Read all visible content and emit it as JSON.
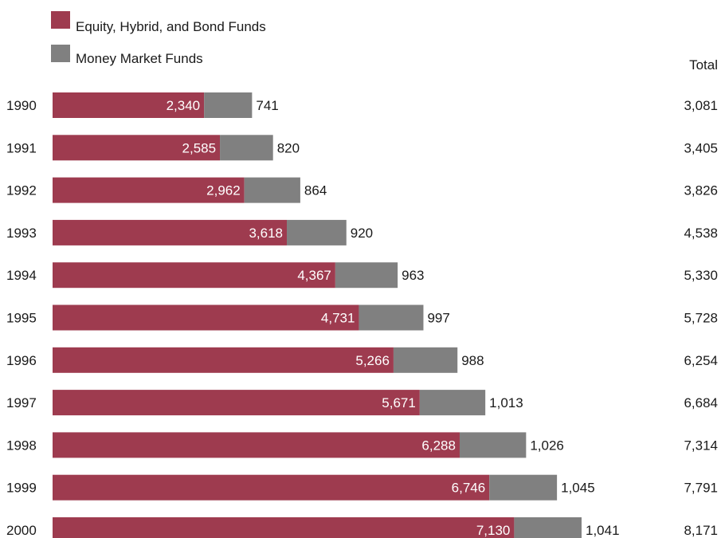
{
  "chart_data": {
    "type": "bar",
    "orientation": "horizontal",
    "stacked": true,
    "categories": [
      "1990",
      "1991",
      "1992",
      "1993",
      "1994",
      "1995",
      "1996",
      "1997",
      "1998",
      "1999",
      "2000"
    ],
    "series": [
      {
        "name": "Equity, Hybrid, and Bond Funds",
        "color": "#9E3B4F",
        "values": [
          2340,
          2585,
          2962,
          3618,
          4367,
          4731,
          5266,
          5671,
          6288,
          6746,
          7130
        ],
        "labels": [
          "2,340",
          "2,585",
          "2,962",
          "3,618",
          "4,367",
          "4,731",
          "5,266",
          "5,671",
          "6,288",
          "6,746",
          "7,130"
        ]
      },
      {
        "name": "Money Market Funds",
        "color": "#808080",
        "values": [
          741,
          820,
          864,
          920,
          963,
          997,
          988,
          1013,
          1026,
          1045,
          1041
        ],
        "labels": [
          "741",
          "820",
          "864",
          "920",
          "963",
          "997",
          "988",
          "1,013",
          "1,026",
          "1,045",
          "1,041"
        ]
      }
    ],
    "totals_header": "Total",
    "totals": [
      "3,081",
      "3,405",
      "3,826",
      "4,538",
      "5,330",
      "5,728",
      "6,254",
      "6,684",
      "7,314",
      "7,791",
      "8,171"
    ],
    "legend_position": "top-left",
    "grid": false
  }
}
